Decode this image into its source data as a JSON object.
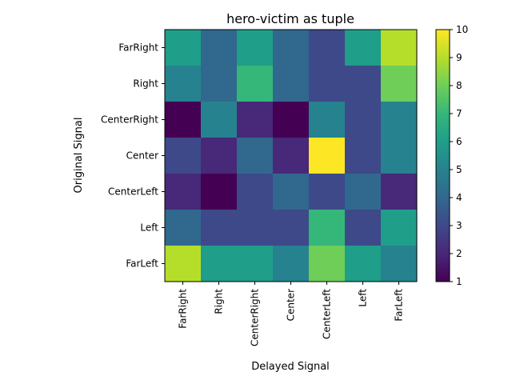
{
  "chart_data": {
    "type": "heatmap",
    "title": "hero-victim as tuple",
    "xlabel": "Delayed Signal",
    "ylabel": "Original Signal",
    "x_categories": [
      "FarRight",
      "Right",
      "CenterRight",
      "Center",
      "CenterLeft",
      "Left",
      "FarLeft"
    ],
    "y_categories": [
      "FarRight",
      "Right",
      "CenterRight",
      "Center",
      "CenterLeft",
      "Left",
      "FarLeft"
    ],
    "values": [
      [
        6,
        4,
        6,
        4,
        3,
        6,
        9
      ],
      [
        5,
        4,
        7,
        4,
        3,
        3,
        8
      ],
      [
        1,
        5,
        2,
        1,
        5,
        3,
        5
      ],
      [
        3,
        2,
        4,
        2,
        10,
        3,
        5
      ],
      [
        2,
        1,
        3,
        4,
        3,
        4,
        2
      ],
      [
        4,
        3,
        3,
        3,
        7,
        3,
        6
      ],
      [
        9,
        6,
        6,
        5,
        8,
        6,
        5
      ]
    ],
    "colorbar": {
      "min": 1,
      "max": 10,
      "ticks": [
        "1",
        "2",
        "3",
        "4",
        "5",
        "6",
        "7",
        "8",
        "9",
        "10"
      ]
    },
    "colormap": "viridis",
    "grid": false
  }
}
